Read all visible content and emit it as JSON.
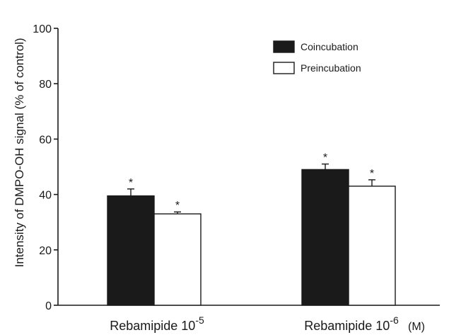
{
  "chart_data": {
    "type": "bar",
    "title": "",
    "ylabel": "Intensity of DMPO-OH signal (% of control)",
    "xlabel": "",
    "unit_label": "(M)",
    "ylim": [
      0,
      100
    ],
    "yticks": [
      0,
      20,
      40,
      60,
      80,
      100
    ],
    "grid": false,
    "legend_position": "top-right",
    "categories": [
      {
        "base": "Rebamipide 10",
        "exponent": "-5"
      },
      {
        "base": "Rebamipide 10",
        "exponent": "-6"
      }
    ],
    "series": [
      {
        "name": "Coincubation",
        "color": "#1a1a1a",
        "values": [
          39.5,
          49
        ],
        "errors": [
          2.5,
          2
        ],
        "significance": [
          "*",
          "*"
        ]
      },
      {
        "name": "Preincubation",
        "color": "#ffffff",
        "values": [
          33,
          43
        ],
        "errors": [
          0.7,
          2.3
        ],
        "significance": [
          "*",
          "*"
        ]
      }
    ]
  }
}
